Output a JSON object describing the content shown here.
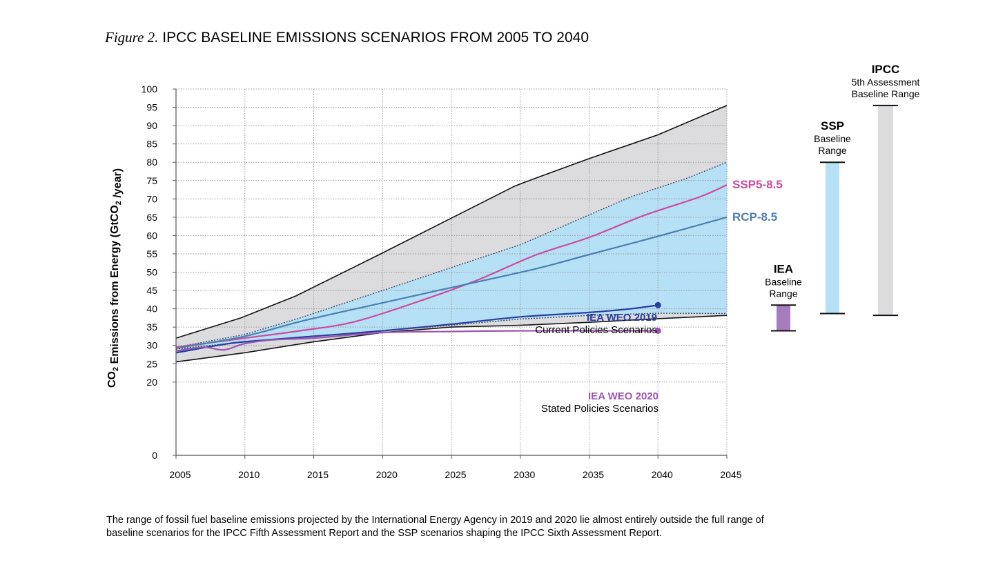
{
  "figure": {
    "label": "Figure 2.",
    "title": "IPCC BASELINE EMISSIONS SCENARIOS FROM 2005 TO 2040",
    "caption": "The range of fossil fuel baseline emissions projected by the International Energy Agency in 2019 and 2020 lie almost entirely outside the full range of baseline scenarios for the IPCC Fifth Assessment Report and the SSP scenarios shaping the IPCC Sixth Assessment Report."
  },
  "colors": {
    "ipcc_band": "#dcdcde",
    "ssp_band": "#b6e0f5",
    "iea_band": "#a77cbf",
    "ssp585": "#cc4a9e",
    "rcp85": "#4b7fb0",
    "weo2019": "#2a3ea1",
    "weo2020": "#9a55b0",
    "grid": "#9a9a9a",
    "envelope": "#111111"
  },
  "chart_data": {
    "type": "line",
    "ylabel": "CO2 Emissions from Energy (GtCO2 /year)",
    "ylim": [
      0,
      100
    ],
    "xlim": [
      2005,
      2045
    ],
    "y_ticks": [
      "0",
      "20",
      "25",
      "30",
      "35",
      "40",
      "45",
      "50",
      "55",
      "60",
      "65",
      "70",
      "75",
      "80",
      "85",
      "90",
      "95",
      "100"
    ],
    "x_ticks": [
      "2005",
      "2010",
      "2015",
      "2020",
      "2025",
      "2030",
      "2035",
      "2040",
      "2045"
    ],
    "grid": true,
    "bands": [
      {
        "name": "IPCC 5th Assessment Baseline Range",
        "upper": [
          [
            2005,
            32
          ],
          [
            2009.7,
            37.5
          ],
          [
            2013.7,
            43.5
          ],
          [
            2019.6,
            54.5
          ],
          [
            2024.6,
            64
          ],
          [
            2029.6,
            73.5
          ],
          [
            2031,
            75.5
          ],
          [
            2035,
            81
          ],
          [
            2040,
            87.5
          ],
          [
            2045,
            95.5
          ]
        ],
        "lower": [
          [
            2005,
            25.5
          ],
          [
            2010,
            28
          ],
          [
            2015,
            31
          ],
          [
            2020,
            33.5
          ],
          [
            2025,
            35
          ],
          [
            2030,
            35.5
          ],
          [
            2035,
            36.3
          ],
          [
            2040,
            37.3
          ],
          [
            2045,
            38.2
          ]
        ]
      },
      {
        "name": "SSP Baseline Range",
        "upper": [
          [
            2005,
            29.5
          ],
          [
            2010,
            33
          ],
          [
            2014,
            37.5
          ],
          [
            2018,
            42.5
          ],
          [
            2022,
            47.5
          ],
          [
            2026,
            52.5
          ],
          [
            2030,
            57.5
          ],
          [
            2034,
            64
          ],
          [
            2038,
            70.5
          ],
          [
            2042,
            75.5
          ],
          [
            2045,
            80
          ]
        ],
        "lower": [
          [
            2005,
            29
          ],
          [
            2010,
            31
          ],
          [
            2015,
            32.5
          ],
          [
            2020,
            34
          ],
          [
            2025,
            35.5
          ],
          [
            2030,
            37.2
          ],
          [
            2035,
            38.2
          ],
          [
            2040,
            38.8
          ],
          [
            2045,
            38.7
          ]
        ]
      }
    ],
    "series": [
      {
        "name": "SSP5-8.5",
        "x": [
          2005,
          2010,
          2014,
          2018,
          2023,
          2027,
          2031,
          2035,
          2039,
          2043,
          2045
        ],
        "y": [
          29.5,
          32,
          34,
          36.5,
          42.5,
          48,
          54.5,
          59.5,
          65.5,
          70.5,
          73.8
        ]
      },
      {
        "name": "RCP-8.5",
        "x": [
          2005,
          2010,
          2014,
          2019,
          2025,
          2031,
          2035,
          2040,
          2045
        ],
        "y": [
          29.2,
          32.5,
          36.5,
          40.8,
          45.8,
          50.8,
          54.8,
          59.8,
          65
        ]
      },
      {
        "name": "IEA WEO 2019",
        "x": [
          2005,
          2008,
          2010,
          2015,
          2020,
          2025,
          2030,
          2035,
          2038,
          2040
        ],
        "y": [
          28,
          30,
          31,
          32.5,
          34,
          35.8,
          37.8,
          39,
          40,
          41
        ]
      },
      {
        "name": "IEA WEO 2020",
        "x": [
          2005,
          2007,
          2008.5,
          2010,
          2012,
          2015,
          2020,
          2025,
          2030,
          2035,
          2040
        ],
        "y": [
          28.5,
          29.5,
          28.8,
          30.5,
          31.5,
          32,
          33.5,
          33.8,
          34,
          34,
          34
        ]
      }
    ],
    "annotations": {
      "ssp585": "SSP5-8.5",
      "rcp85": "RCP-8.5",
      "weo2019_title": "IEA WEO 2019",
      "weo2019_sub": "Current Policies Scenarios",
      "weo2020_title": "IEA WEO 2020",
      "weo2020_sub": "Stated Policies Scenarios"
    },
    "range_bars": [
      {
        "key": "iea",
        "heading": "IEA",
        "label_lines": [
          "Baseline",
          "Range"
        ],
        "min": 34,
        "max": 41
      },
      {
        "key": "ssp",
        "heading": "SSP",
        "label_lines": [
          "Baseline",
          "Range"
        ],
        "min": 38.7,
        "max": 80
      },
      {
        "key": "ipcc",
        "heading": "IPCC",
        "label_lines": [
          "5th Assessment",
          "Baseline Range"
        ],
        "min": 38.2,
        "max": 95.5
      }
    ]
  }
}
